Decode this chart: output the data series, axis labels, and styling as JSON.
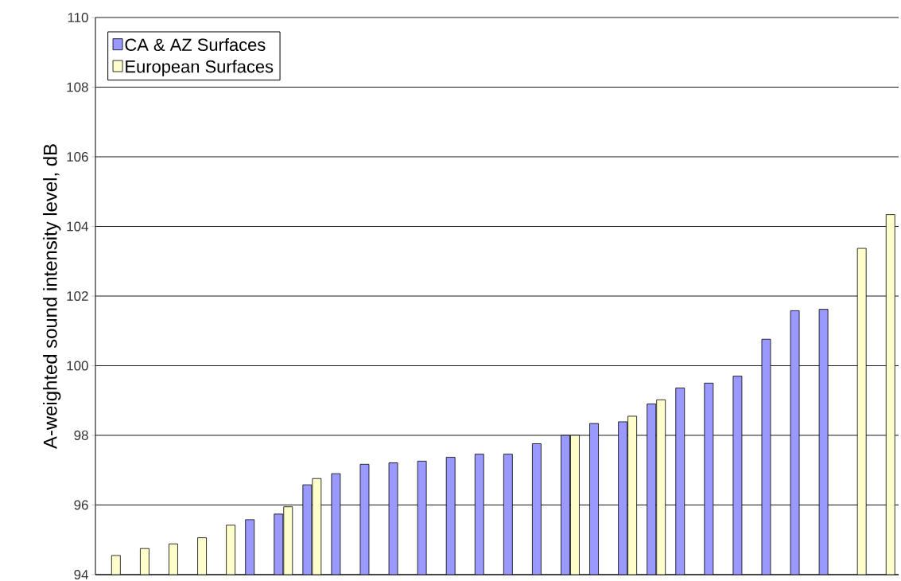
{
  "chart_data": {
    "type": "bar",
    "ylabel": "A-weighted sound intensity level, dB",
    "categories": [
      null,
      null,
      null,
      null,
      null,
      null,
      null,
      null,
      null,
      null,
      null,
      null,
      null,
      null,
      null,
      null,
      null,
      null,
      null,
      null,
      null,
      null,
      null,
      null,
      null,
      null,
      null,
      null
    ],
    "series": [
      {
        "name": "CA & AZ Surfaces",
        "color": "#9999ff",
        "values": [
          null,
          null,
          null,
          null,
          null,
          95.58,
          95.74,
          96.58,
          96.9,
          97.17,
          97.21,
          97.26,
          97.37,
          97.46,
          97.46,
          97.76,
          98.0,
          98.34,
          98.39,
          98.9,
          99.36,
          99.5,
          99.7,
          100.76,
          101.58,
          101.62,
          null,
          null
        ]
      },
      {
        "name": "European Surfaces",
        "color": "#ffffcc",
        "values": [
          94.55,
          94.75,
          94.88,
          95.06,
          95.42,
          null,
          95.95,
          96.76,
          null,
          null,
          null,
          null,
          null,
          null,
          null,
          null,
          98.0,
          null,
          98.55,
          99.02,
          null,
          null,
          null,
          null,
          null,
          null,
          103.37,
          104.34
        ]
      }
    ],
    "ylim": [
      94,
      110
    ],
    "yticks": [
      94,
      96,
      98,
      100,
      102,
      104,
      106,
      108,
      110
    ],
    "grid": "y",
    "legend": "top left",
    "tick_labels": "y"
  }
}
